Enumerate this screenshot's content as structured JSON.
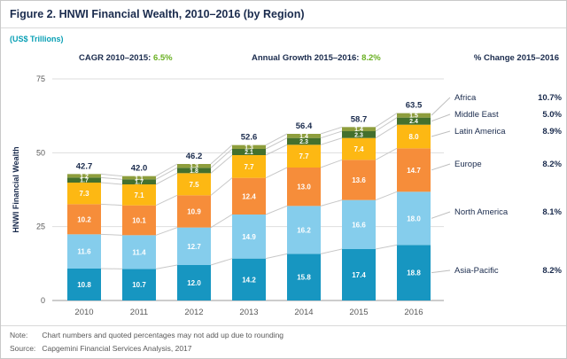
{
  "header": {
    "title": "Figure 2. HNWI Financial Wealth, 2010–2016 (by Region)",
    "units": "(US$ Trillions)"
  },
  "annotations": {
    "cagr_label": "CAGR 2010–2015:",
    "cagr_value": "6.5%",
    "growth_label": "Annual Growth 2015–2016:",
    "growth_value": "8.2%",
    "pct_change_header": "% Change 2015–2016"
  },
  "chart_data": {
    "type": "bar",
    "stacked": true,
    "title": "HNWI Financial Wealth, 2010–2016 (by Region)",
    "ylabel": "HNWI Financial Wealth",
    "ylim": [
      0,
      75
    ],
    "yticks": [
      0,
      25,
      50,
      75
    ],
    "grid": true,
    "legend_position": "right",
    "categories": [
      "2010",
      "2011",
      "2012",
      "2013",
      "2014",
      "2015",
      "2016"
    ],
    "series": [
      {
        "name": "Asia-Pacific",
        "color": "#1796c1",
        "values": [
          10.8,
          10.7,
          12.0,
          14.2,
          15.8,
          17.4,
          18.8
        ],
        "pct_change": "8.2%"
      },
      {
        "name": "North America",
        "color": "#85cdec",
        "values": [
          11.6,
          11.4,
          12.7,
          14.9,
          16.2,
          16.6,
          18.0
        ],
        "pct_change": "8.1%"
      },
      {
        "name": "Europe",
        "color": "#f68d3a",
        "values": [
          10.2,
          10.1,
          10.9,
          12.4,
          13.0,
          13.6,
          14.7
        ],
        "pct_change": "8.2%"
      },
      {
        "name": "Latin America",
        "color": "#fdb813",
        "values": [
          7.3,
          7.1,
          7.5,
          7.7,
          7.7,
          7.4,
          8.0
        ],
        "pct_change": "8.9%"
      },
      {
        "name": "Middle East",
        "color": "#44702d",
        "values": [
          1.7,
          1.7,
          1.8,
          2.1,
          2.3,
          2.3,
          2.4
        ],
        "pct_change": "5.0%"
      },
      {
        "name": "Africa",
        "color": "#8e9e3d",
        "values": [
          1.2,
          1.1,
          1.3,
          1.3,
          1.4,
          1.4,
          1.5
        ],
        "pct_change": "10.7%"
      }
    ],
    "totals": [
      "42.7",
      "42.0",
      "46.2",
      "52.6",
      "56.4",
      "58.7",
      "63.5"
    ]
  },
  "notes": {
    "note_label": "Note:",
    "note_text": "Chart numbers and quoted percentages may not add up due to rounding",
    "source_label": "Source:",
    "source_text": "Capgemini Financial Services Analysis, 2017"
  },
  "colors": {
    "accent_green": "#6ab023",
    "teal": "#0aa0b5",
    "navy": "#1a2b4d"
  }
}
